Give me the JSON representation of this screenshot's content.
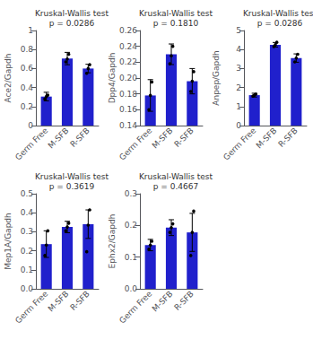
{
  "chart_data": [
    {
      "type": "bar",
      "title": "Kruskal-Wallis test\np = 0.0286",
      "ylabel": "Ace2/Gapdh",
      "categories": [
        "Germ Free",
        "M-SFB",
        "R-SFB"
      ],
      "values": [
        0.305,
        0.705,
        0.6
      ],
      "errors": [
        0.045,
        0.065,
        0.045
      ],
      "dots": [
        [
          0.28,
          0.305,
          0.32
        ],
        [
          0.67,
          0.7,
          0.75
        ],
        [
          0.55,
          0.6,
          0.64
        ]
      ],
      "color": "#2020cc",
      "ylim": [
        0,
        1
      ],
      "yticks": [
        0,
        0.2,
        0.4,
        0.6,
        0.8,
        1
      ],
      "grid": false
    },
    {
      "type": "bar",
      "title": "Kruskal-Wallis test\np = 0.1810",
      "ylabel": "Dpp4/Gapdh",
      "categories": [
        "Germ Free",
        "M-SFB",
        "R-SFB"
      ],
      "values": [
        0.178,
        0.23,
        0.196
      ],
      "errors": [
        0.02,
        0.013,
        0.016
      ],
      "dots": [
        [
          0.16,
          0.178,
          0.195
        ],
        [
          0.218,
          0.228,
          0.24
        ],
        [
          0.183,
          0.196,
          0.208
        ]
      ],
      "color": "#2020cc",
      "ylim": [
        0.14,
        0.26
      ],
      "yticks": [
        0.14,
        0.16,
        0.18,
        {
          "value": 0.2,
          "label": "0.20"
        },
        0.22,
        0.24,
        0.26
      ],
      "grid": false
    },
    {
      "type": "bar",
      "title": "Kruskal-Wallis test\np = 0.0286",
      "ylabel": "Anpep/Gapdh",
      "categories": [
        "Germ Free",
        "M-SFB",
        "R-SFB"
      ],
      "values": [
        1.6,
        4.25,
        3.55
      ],
      "errors": [
        0.1,
        0.12,
        0.22
      ],
      "dots": [
        [
          1.55,
          1.6,
          1.65
        ],
        [
          4.15,
          4.25,
          4.38
        ],
        [
          3.35,
          3.55,
          3.75
        ]
      ],
      "color": "#2020cc",
      "ylim": [
        0,
        5
      ],
      "yticks": [
        0,
        1,
        2,
        3,
        4,
        5
      ],
      "grid": false
    },
    {
      "type": "bar",
      "title": "Kruskal-Wallis test\np = 0.3619",
      "ylabel": "Mep1A/Gapdh",
      "categories": [
        "Germ Free",
        "M-SFB",
        "R-SFB"
      ],
      "values": [
        0.235,
        0.325,
        0.34
      ],
      "errors": [
        0.07,
        0.03,
        0.075
      ],
      "dots": [
        [
          0.175,
          0.23,
          0.305
        ],
        [
          0.305,
          0.325,
          0.345
        ],
        [
          0.195,
          0.335,
          0.415
        ]
      ],
      "color": "#2020cc",
      "ylim": [
        0,
        0.5
      ],
      "yticks": [
        {
          "value": 0,
          "label": "0.0"
        },
        0.1,
        0.2,
        0.3,
        0.4,
        0.5
      ],
      "grid": false
    },
    {
      "type": "bar",
      "title": "Kruskal-Wallis test\np = 0.4667",
      "ylabel": "Ephx2/Gapdh",
      "categories": [
        "Germ Free",
        "M-SFB",
        "R-SFB"
      ],
      "values": [
        0.138,
        0.193,
        0.178
      ],
      "errors": [
        0.018,
        0.025,
        0.06
      ],
      "dots": [
        [
          0.125,
          0.138,
          0.15
        ],
        [
          0.178,
          0.193,
          0.205
        ],
        [
          0.105,
          0.178,
          0.245
        ]
      ],
      "color": "#2020cc",
      "ylim": [
        0,
        0.3
      ],
      "yticks": [
        {
          "value": 0,
          "label": "0.0"
        },
        0.1,
        0.2,
        0.3
      ],
      "grid": false
    }
  ]
}
